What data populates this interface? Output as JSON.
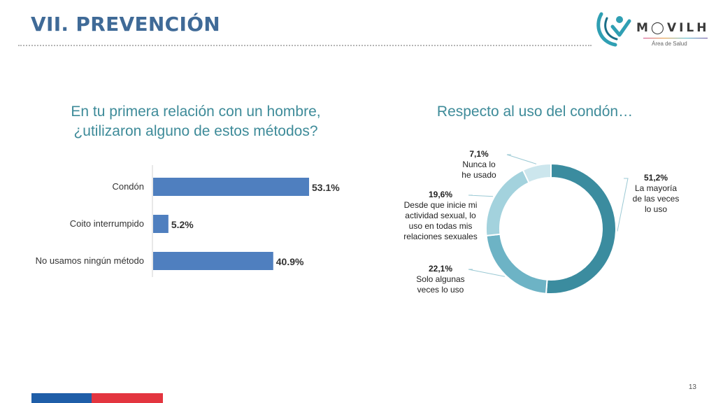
{
  "slide": {
    "title": "VII. PREVENCIÓN",
    "page_number": "13"
  },
  "logo": {
    "word": "M◯VILH",
    "subtitle": "Área de Salud",
    "colors": [
      "#2f9fb3",
      "#1a6f88",
      "#d34a8b",
      "#e39a3c"
    ]
  },
  "chart_data": [
    {
      "type": "bar",
      "orientation": "horizontal",
      "title": "En tu primera relación con un hombre, ¿utilizaron alguno de estos métodos?",
      "categories": [
        "Condón",
        "Coito interrumpido",
        "No usamos ningún método"
      ],
      "values": [
        53.1,
        5.2,
        40.9
      ],
      "value_labels": [
        "53.1%",
        "5.2%",
        "40.9%"
      ],
      "xlim": [
        0,
        100
      ],
      "bar_color": "#4f7fbf",
      "grid": false,
      "legend": "none"
    },
    {
      "type": "pie",
      "variant": "donut",
      "title": "Respecto al uso del condón…",
      "slices": [
        {
          "value": 51.2,
          "value_label": "51,2%",
          "label_lines": [
            "La mayoría",
            "de las veces",
            "lo uso"
          ],
          "color": "#3b8c9f"
        },
        {
          "value": 22.1,
          "value_label": "22,1%",
          "label_lines": [
            "Solo algunas",
            "veces lo uso"
          ],
          "color": "#6db3c5"
        },
        {
          "value": 19.6,
          "value_label": "19,6%",
          "label_lines": [
            "Desde  que inicie mi",
            "actividad sexual, lo",
            "uso en todas mis",
            "relaciones sexuales"
          ],
          "color": "#a3d2dd"
        },
        {
          "value": 7.1,
          "value_label": "7,1%",
          "label_lines": [
            "Nunca lo",
            "he usado"
          ],
          "color": "#cce6ed"
        }
      ],
      "start_angle_deg": 0,
      "direction": "clockwise",
      "legend": "none"
    }
  ]
}
